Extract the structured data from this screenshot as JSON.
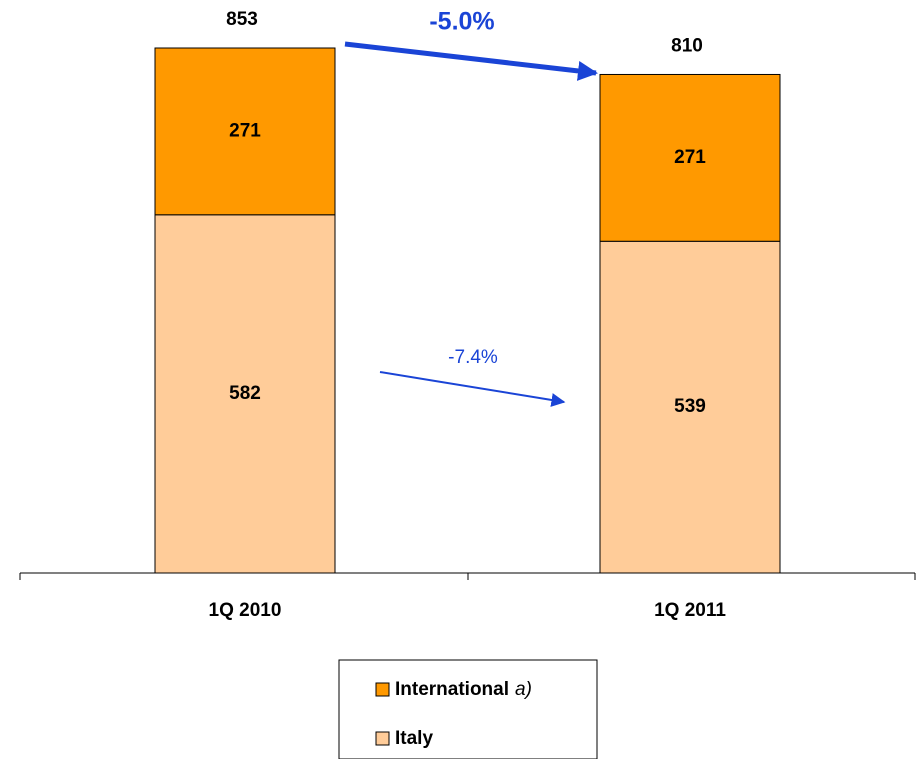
{
  "chart_data": {
    "type": "stacked_bar",
    "categories": [
      "1Q 2010",
      "1Q 2011"
    ],
    "series": [
      {
        "name": "Italy",
        "color": "#ffcc99",
        "values": [
          582,
          539
        ]
      },
      {
        "name": "International",
        "color": "#ff9900",
        "values": [
          271,
          271
        ]
      }
    ],
    "total_labels": [
      853,
      810
    ],
    "legend_note": "a)",
    "annotations": [
      "-5.0%",
      "-7.4%"
    ]
  }
}
